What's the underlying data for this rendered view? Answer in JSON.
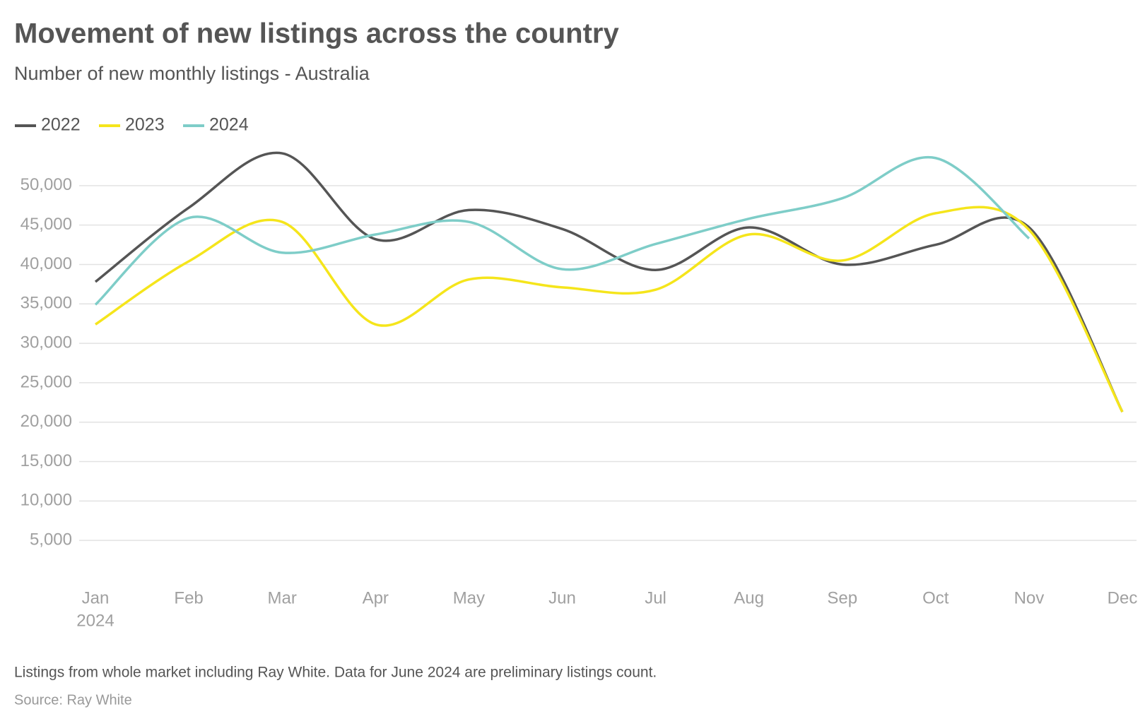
{
  "chart_data": {
    "type": "line",
    "title": "Movement of new listings across the country",
    "subtitle": "Number of new monthly listings - Australia",
    "categories": [
      "Jan",
      "Feb",
      "Mar",
      "Apr",
      "May",
      "Jun",
      "Jul",
      "Aug",
      "Sep",
      "Oct",
      "Nov",
      "Dec"
    ],
    "x_sublabel": "2024",
    "series": [
      {
        "name": "2022",
        "color": "#555555",
        "values": [
          37800,
          47200,
          54100,
          43200,
          46900,
          44500,
          39300,
          44700,
          40000,
          42500,
          44700,
          21300
        ]
      },
      {
        "name": "2023",
        "color": "#f5e51b",
        "values": [
          32400,
          40400,
          45400,
          32400,
          38100,
          37100,
          36800,
          43800,
          40500,
          46500,
          44400,
          21300
        ]
      },
      {
        "name": "2024",
        "color": "#7ecdc8",
        "values": [
          34900,
          45900,
          41500,
          43800,
          45400,
          39400,
          42600,
          45800,
          48400,
          53500,
          43300,
          null
        ]
      }
    ],
    "ylim": [
      0,
      55000
    ],
    "yticks": [
      {
        "value": 5000,
        "label": "5,000"
      },
      {
        "value": 10000,
        "label": "10,000"
      },
      {
        "value": 15000,
        "label": "15,000"
      },
      {
        "value": 20000,
        "label": "20,000"
      },
      {
        "value": 25000,
        "label": "25,000"
      },
      {
        "value": 30000,
        "label": "30,000"
      },
      {
        "value": 35000,
        "label": "35,000"
      },
      {
        "value": 40000,
        "label": "40,000"
      },
      {
        "value": 45000,
        "label": "45,000"
      },
      {
        "value": 50000,
        "label": "50,000"
      }
    ],
    "grid": true,
    "legend": "top-left",
    "note": "Listings from whole market including Ray White. Data for June 2024 are preliminary listings count.",
    "source": "Source: Ray White"
  }
}
